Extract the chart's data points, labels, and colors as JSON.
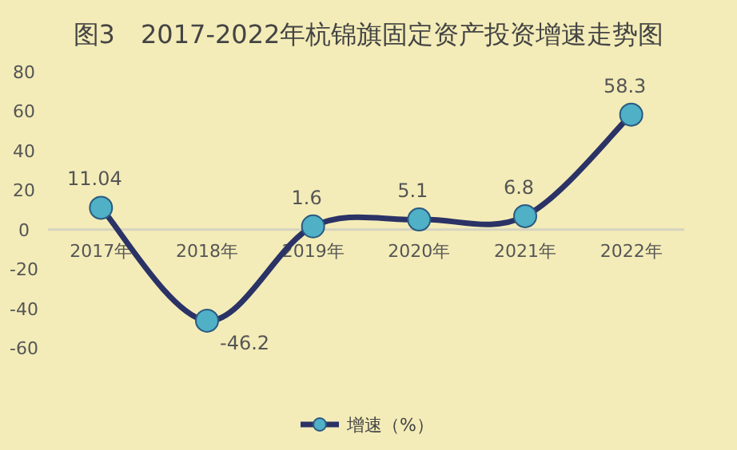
{
  "chart_data": {
    "type": "line",
    "title": "图3　2017-2022年杭锦旗固定资产投资增速走势图",
    "categories": [
      "2017年",
      "2018年",
      "2019年",
      "2020年",
      "2021年",
      "2022年"
    ],
    "series": [
      {
        "name": "增速（%）",
        "color": "#2b3266",
        "values": [
          11.04,
          -46.2,
          1.6,
          5.1,
          6.8,
          58.3
        ]
      }
    ],
    "ylim": [
      -60,
      80
    ],
    "yticks": [
      -60,
      -40,
      -20,
      0,
      20,
      40,
      60,
      80
    ],
    "grid": false,
    "legend": "bottom",
    "marker": "circle",
    "line_style": "solid",
    "data_labels": true
  }
}
